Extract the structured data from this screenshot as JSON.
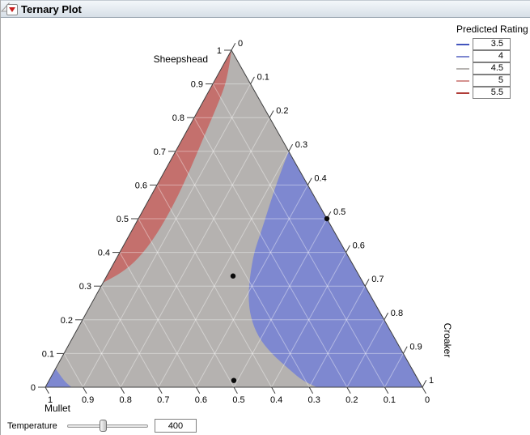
{
  "window": {
    "title": "Ternary Plot"
  },
  "legend": {
    "title": "Predicted Rating",
    "entries": [
      {
        "label": "3.5",
        "color": "#4355bd"
      },
      {
        "label": "4",
        "color": "#7e88d0"
      },
      {
        "label": "4.5",
        "color": "#b5b2b0"
      },
      {
        "label": "5",
        "color": "#d59290"
      },
      {
        "label": "5.5",
        "color": "#b03c38"
      }
    ]
  },
  "controls": {
    "temperature_label": "Temperature",
    "temperature_value": "400"
  },
  "chart_data": {
    "type": "ternary-contour",
    "response": "Predicted Rating",
    "levels": [
      3.5,
      4,
      4.5,
      5,
      5.5
    ],
    "axes": {
      "sheepshead": {
        "label": "Sheepshead",
        "ticks": [
          "1",
          "0.9",
          "0.8",
          "0.7",
          "0.6",
          "0.5",
          "0.4",
          "0.3",
          "0.2",
          "0.1",
          "0"
        ]
      },
      "mullet": {
        "label": "Mullet",
        "ticks": [
          "1",
          "0.9",
          "0.8",
          "0.7",
          "0.6",
          "0.5",
          "0.4",
          "0.3",
          "0.2",
          "0.1",
          "0"
        ]
      },
      "croaker": {
        "label": "Croaker",
        "ticks": [
          "0",
          "0.1",
          "0.2",
          "0.3",
          "0.4",
          "0.5",
          "0.6",
          "0.7",
          "0.8",
          "0.9",
          "1"
        ]
      }
    },
    "grid_step": 0.1,
    "grid_on": true,
    "base_color": "#b5b2b0",
    "grid_color": "rgba(255,255,255,0.4)",
    "regions": [
      {
        "name": "rating-below-4-right",
        "color": "#7e88d0",
        "contour_sc": [
          [
            0.7,
            0.3
          ],
          [
            0.62,
            0.312
          ],
          [
            0.54,
            0.328
          ],
          [
            0.46,
            0.345
          ],
          [
            0.4,
            0.356
          ],
          [
            0.33,
            0.38
          ],
          [
            0.27,
            0.405
          ],
          [
            0.21,
            0.44
          ],
          [
            0.15,
            0.49
          ],
          [
            0.1,
            0.55
          ],
          [
            0.05,
            0.625
          ],
          [
            0.02,
            0.672
          ],
          [
            0.0,
            0.72
          ]
        ],
        "close_sc": [
          [
            0.0,
            1.0
          ]
        ]
      },
      {
        "name": "rating-below-4-corner",
        "color": "#7e88d0",
        "contour_sc": [
          [
            0.055,
            0.0
          ],
          [
            0.03,
            0.028
          ],
          [
            0.012,
            0.05
          ],
          [
            0.0,
            0.07
          ]
        ],
        "close_sc": [
          [
            0.0,
            0.0
          ]
        ]
      },
      {
        "name": "rating-above-5-left",
        "color": "#c4706d",
        "contour_sc": [
          [
            1.0,
            0.0
          ],
          [
            0.92,
            0.03
          ],
          [
            0.85,
            0.042
          ],
          [
            0.75,
            0.053
          ],
          [
            0.65,
            0.065
          ],
          [
            0.55,
            0.073
          ],
          [
            0.45,
            0.072
          ],
          [
            0.38,
            0.058
          ],
          [
            0.34,
            0.035
          ],
          [
            0.31,
            0.0
          ]
        ],
        "close_sc": []
      }
    ],
    "design_points_smc": [
      [
        0.33,
        0.335,
        0.335
      ],
      [
        0.02,
        0.49,
        0.49
      ],
      [
        0.5,
        0.0,
        0.5
      ]
    ]
  }
}
